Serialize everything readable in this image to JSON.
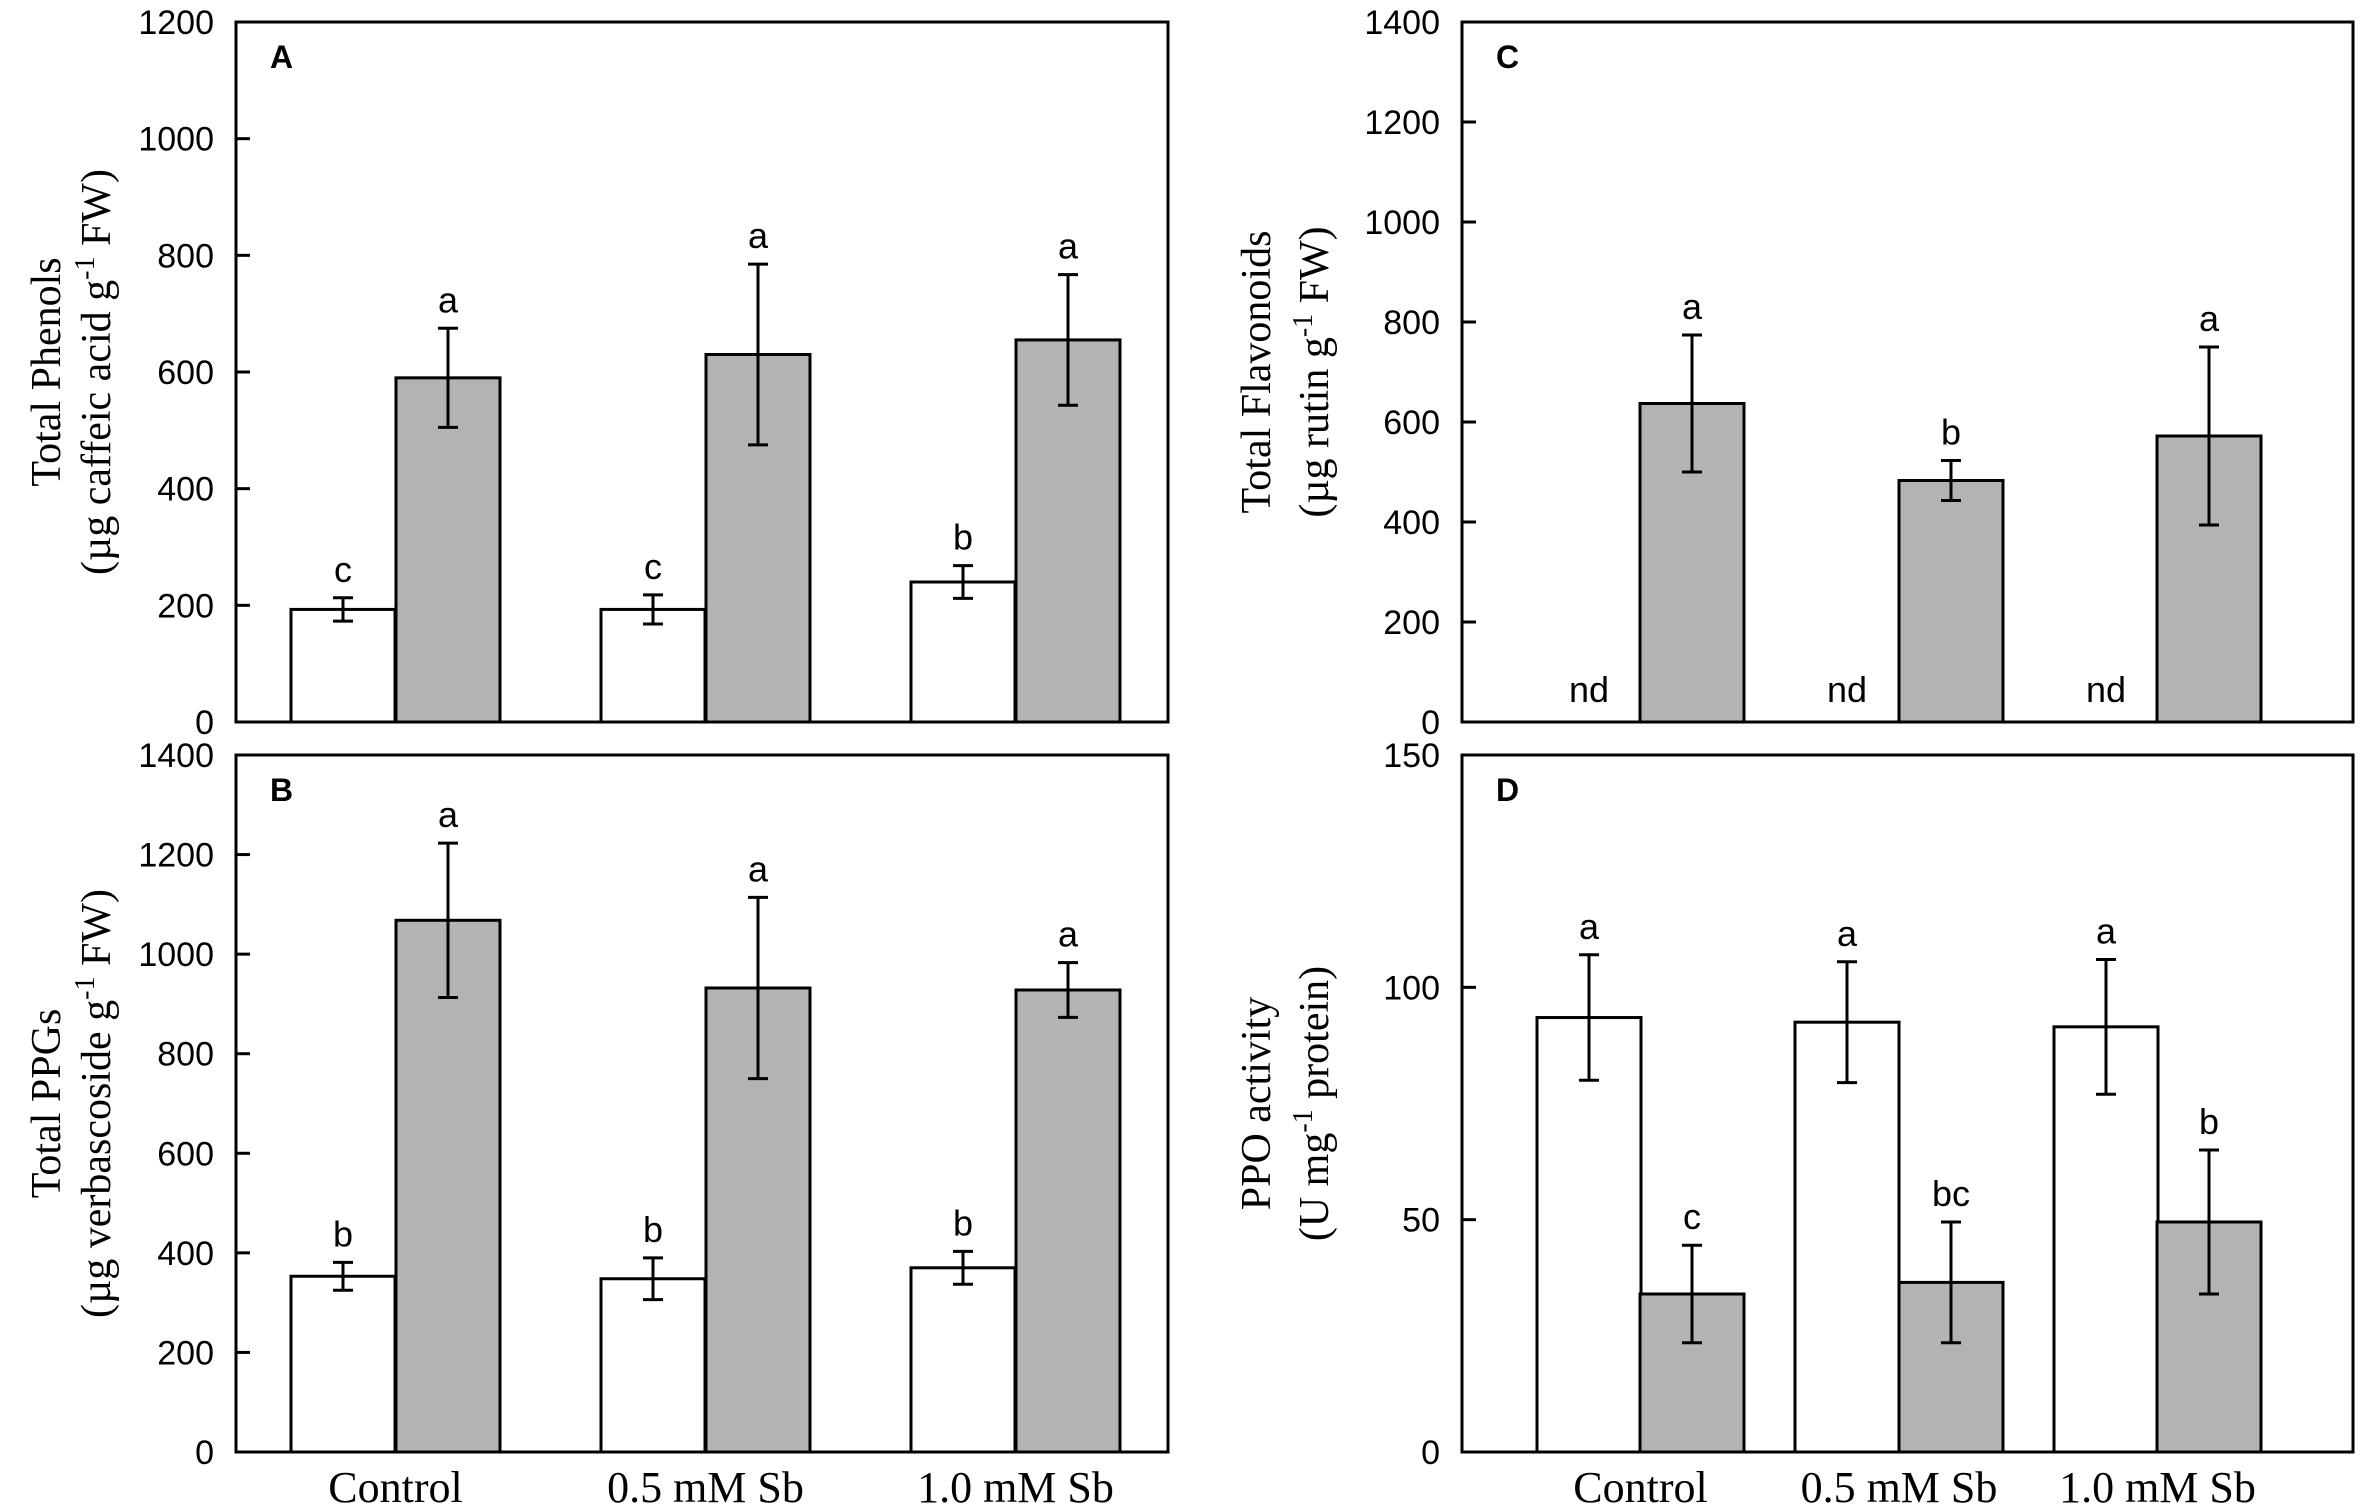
{
  "chart_data": [
    {
      "type": "bar",
      "panel": "A",
      "categories": [
        "Control",
        "0.5 mM Sb",
        "1.0 mM Sb"
      ],
      "ylim": [
        0,
        1200
      ],
      "yticks": [
        0,
        200,
        400,
        600,
        800,
        1000,
        1200
      ],
      "ylabel_line1": "Total Phenols",
      "ylabel_line2": "(µg caffeic acid g",
      "ylabel_sup": "-1",
      "ylabel_tail": " FW)",
      "series": [
        {
          "name": "series-1",
          "color": "#ffffff",
          "values": [
            193,
            193,
            240
          ],
          "errors": [
            20,
            25,
            28
          ],
          "labels": [
            "c",
            "c",
            "b"
          ]
        },
        {
          "name": "series-2",
          "color": "#b3b3b3",
          "values": [
            590,
            630,
            655
          ],
          "errors": [
            85,
            155,
            112
          ],
          "labels": [
            "a",
            "a",
            "a"
          ]
        }
      ]
    },
    {
      "type": "bar",
      "panel": "B",
      "categories": [
        "Control",
        "0.5 mM Sb",
        "1.0 mM Sb"
      ],
      "ylim": [
        0,
        1400
      ],
      "yticks": [
        0,
        200,
        400,
        600,
        800,
        1000,
        1200,
        1400
      ],
      "ylabel_line1": "Total PPGs",
      "ylabel_line2": "(µg verbascoside g",
      "ylabel_sup": "-1",
      "ylabel_tail": " FW)",
      "series": [
        {
          "name": "series-1",
          "color": "#ffffff",
          "values": [
            353,
            348,
            370
          ],
          "errors": [
            28,
            42,
            33
          ],
          "labels": [
            "b",
            "b",
            "b"
          ]
        },
        {
          "name": "series-2",
          "color": "#b3b3b3",
          "values": [
            1068,
            932,
            928
          ],
          "errors": [
            155,
            182,
            55
          ],
          "labels": [
            "a",
            "a",
            "a"
          ]
        }
      ]
    },
    {
      "type": "bar",
      "panel": "C",
      "categories": [
        "Control",
        "0.5 mM Sb",
        "1.0 mM Sb"
      ],
      "ylim": [
        0,
        1400
      ],
      "yticks": [
        0,
        200,
        400,
        600,
        800,
        1000,
        1200,
        1400
      ],
      "ylabel_line1": "Total Flavonoids",
      "ylabel_line2": "(µg rutin  g",
      "ylabel_sup": "-1",
      "ylabel_tail": " FW)",
      "series": [
        {
          "name": "series-1",
          "color": "#ffffff",
          "values": [
            0,
            0,
            0
          ],
          "errors": [
            0,
            0,
            0
          ],
          "labels": [
            "nd",
            "nd",
            "nd"
          ],
          "not_detected": true
        },
        {
          "name": "series-2",
          "color": "#b3b3b3",
          "values": [
            637,
            483,
            572
          ],
          "errors": [
            137,
            40,
            178
          ],
          "labels": [
            "a",
            "b",
            "a"
          ]
        }
      ]
    },
    {
      "type": "bar",
      "panel": "D",
      "categories": [
        "Control",
        "0.5 mM Sb",
        "1.0 mM Sb"
      ],
      "ylim": [
        0,
        150
      ],
      "yticks": [
        0,
        50,
        100,
        150
      ],
      "ylabel_line1": "PPO activity",
      "ylabel_line2": "(U mg",
      "ylabel_sup": "-1",
      "ylabel_tail": " protein)",
      "series": [
        {
          "name": "series-1",
          "color": "#ffffff",
          "values": [
            93.5,
            92.5,
            91.5
          ],
          "errors": [
            13.5,
            13,
            14.5
          ],
          "labels": [
            "a",
            "a",
            "a"
          ]
        },
        {
          "name": "series-2",
          "color": "#b3b3b3",
          "values": [
            34,
            36.5,
            49.5
          ],
          "errors": [
            10.5,
            13,
            15.5
          ],
          "labels": [
            "c",
            "bc",
            "b"
          ]
        }
      ]
    }
  ]
}
